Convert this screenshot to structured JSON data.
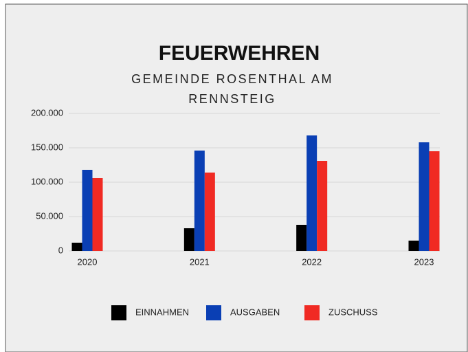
{
  "chart_data": {
    "type": "bar",
    "title": "FEUERWEHREN",
    "subtitle": [
      "GEMEINDE ROSENTHAL AM",
      "RENNSTEIG"
    ],
    "categories": [
      "2020",
      "2021",
      "2022",
      "2023"
    ],
    "series": [
      {
        "name": "EINNAHMEN",
        "color": "#000000",
        "values": [
          12000,
          33000,
          38000,
          15000
        ]
      },
      {
        "name": "AUSGABEN",
        "color": "#0a3fb4",
        "values": [
          118000,
          146000,
          168000,
          158000
        ]
      },
      {
        "name": "ZUSCHUSS",
        "color": "#f02a23",
        "values": [
          106000,
          114000,
          131000,
          145000
        ]
      }
    ],
    "ylim": [
      0,
      200000
    ],
    "yticks": [
      0,
      {
        "value": 50000,
        "label": "50.000"
      },
      {
        "value": 100000,
        "label": "100.000"
      },
      {
        "value": 150000,
        "label": "150.000"
      },
      {
        "value": 200000,
        "label": "200.000"
      }
    ],
    "grid": true
  }
}
